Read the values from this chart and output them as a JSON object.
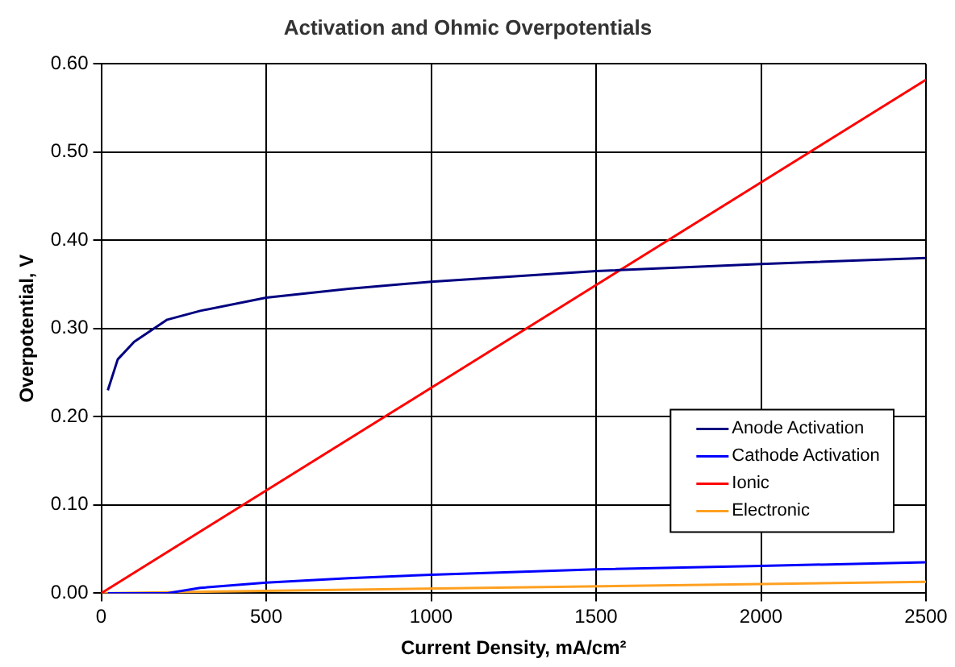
{
  "chart_data": {
    "type": "line",
    "title": "Activation and Ohmic Overpotentials",
    "xlabel": "Current Density, mA/cm²",
    "ylabel": "Overpotential, V",
    "xlim": [
      0,
      2500
    ],
    "xticks": [
      0,
      500,
      1000,
      1500,
      2000,
      2500
    ],
    "ylim": [
      0,
      0.6
    ],
    "yticks": [
      {
        "value": 0,
        "label": "0.00"
      },
      {
        "value": 0.1,
        "label": "0.10"
      },
      {
        "value": 0.2,
        "label": "0.20"
      },
      {
        "value": 0.3,
        "label": "0.30"
      },
      {
        "value": 0.4,
        "label": "0.40"
      },
      {
        "value": 0.5,
        "label": "0.50"
      },
      {
        "value": 0.6,
        "label": "0.60"
      }
    ],
    "grid": true,
    "legend": "bottom right",
    "marker": "none",
    "line_style": "solid",
    "series": [
      {
        "name": "Anode Activation",
        "color": "#000080",
        "x": [
          20,
          50,
          100,
          200,
          300,
          500,
          750,
          1000,
          1500,
          2000,
          2500
        ],
        "values": [
          0.23,
          0.265,
          0.285,
          0.31,
          0.32,
          0.335,
          0.345,
          0.353,
          0.365,
          0.373,
          0.38
        ]
      },
      {
        "name": "Cathode Activation",
        "color": "#0000ff",
        "x": [
          20,
          100,
          200,
          300,
          500,
          750,
          1000,
          1500,
          2000,
          2500
        ],
        "values": [
          0,
          0,
          0,
          0.006,
          0.012,
          0.017,
          0.021,
          0.027,
          0.031,
          0.035
        ]
      },
      {
        "name": "Ionic",
        "color": "#ff0000",
        "x": [
          0,
          2500
        ],
        "values": [
          0,
          0.582
        ]
      },
      {
        "name": "Electronic",
        "color": "#ffa020",
        "x": [
          0,
          2500
        ],
        "values": [
          0,
          0.013
        ]
      }
    ]
  }
}
